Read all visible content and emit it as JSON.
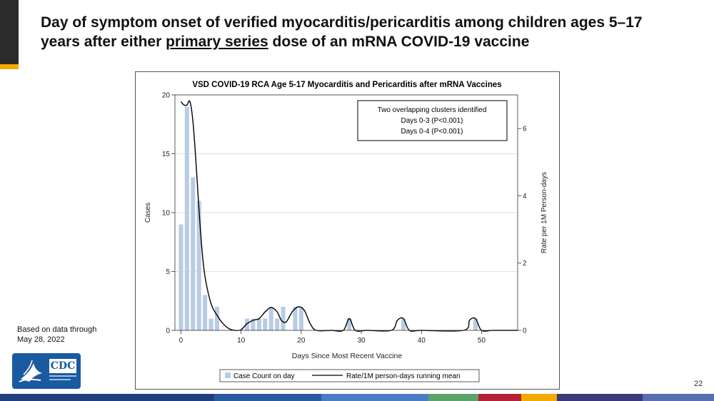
{
  "slide": {
    "title_line1": "Day of symptom onset of verified myocarditis/pericarditis among children ages 5–17",
    "title_line2_pre": "years after either ",
    "title_line2_underlined": "primary series",
    "title_line2_post": " dose of an mRNA COVID-19 vaccine",
    "footnote_line1": "Based on data through",
    "footnote_line2": "May 28, 2022",
    "logo_text": "CDC",
    "page_number": "22"
  },
  "colors": {
    "bar": "#b8cce4",
    "line": "#000000",
    "corner_bar": "#2b2b2b",
    "corner_accent": "#f2a900",
    "cdc_blue": "#1a5aa0",
    "stripe": [
      "#1f3f7f",
      "#2c5aa0",
      "#4a7cc4",
      "#5aa36b",
      "#b22234",
      "#f2a900",
      "#3a3a7a",
      "#5a6fb0"
    ]
  },
  "chart_data": {
    "type": "bar",
    "title": "VSD COVID-19 RCA Age 5-17 Myocarditis and Pericarditis after mRNA Vaccines",
    "xlabel": "Days Since Most Recent Vaccine",
    "ylabel": "Cases",
    "y2label": "Rate per 1M Person-days",
    "xlim": [
      -1,
      56
    ],
    "ylim": [
      0,
      20
    ],
    "y2lim": [
      0,
      7
    ],
    "x_ticks": [
      0,
      10,
      20,
      30,
      40,
      50
    ],
    "y_ticks": [
      0,
      5,
      10,
      15,
      20
    ],
    "y2_ticks": [
      0,
      2,
      4,
      6
    ],
    "grid": "horizontal",
    "annotation": {
      "lines": [
        "Two overlapping clusters identified",
        "Days 0-3 (P<0.001)",
        "Days  0-4 (P<0.001)"
      ],
      "placement": "top-right"
    },
    "series": [
      {
        "name": "Case Count on day",
        "type": "bar",
        "x": [
          0,
          1,
          2,
          3,
          4,
          5,
          6,
          11,
          12,
          13,
          14,
          15,
          16,
          17,
          19,
          20,
          28,
          37,
          49
        ],
        "values": [
          9,
          19,
          13,
          11,
          3,
          1,
          2,
          1,
          1,
          1,
          1,
          2,
          1,
          2,
          2,
          2,
          1,
          1,
          1
        ]
      },
      {
        "name": "Rate/1M person-days running mean",
        "type": "line",
        "axis": "y2",
        "x": [
          0,
          0.5,
          1,
          1.5,
          2,
          2.5,
          3,
          3.5,
          4,
          5,
          6,
          7,
          8,
          9,
          10,
          11,
          12,
          13,
          14,
          15,
          16,
          16.7,
          17.5,
          18.5,
          19.5,
          20.5,
          21.5,
          22.5,
          25,
          27,
          28,
          29,
          31,
          35,
          36,
          37,
          38,
          40,
          47,
          48,
          49,
          50,
          52,
          56
        ],
        "values": [
          6.8,
          6.7,
          6.7,
          6.8,
          6.2,
          5.0,
          3.6,
          2.4,
          1.6,
          0.8,
          0.45,
          0.2,
          0.05,
          0.0,
          0.02,
          0.2,
          0.3,
          0.35,
          0.55,
          0.68,
          0.55,
          0.3,
          0.25,
          0.55,
          0.7,
          0.6,
          0.2,
          0.0,
          0.0,
          0.0,
          0.35,
          0.0,
          0.0,
          0.0,
          0.3,
          0.35,
          0.0,
          0.0,
          0.0,
          0.3,
          0.35,
          0.0,
          0.0,
          0.0
        ]
      }
    ]
  }
}
